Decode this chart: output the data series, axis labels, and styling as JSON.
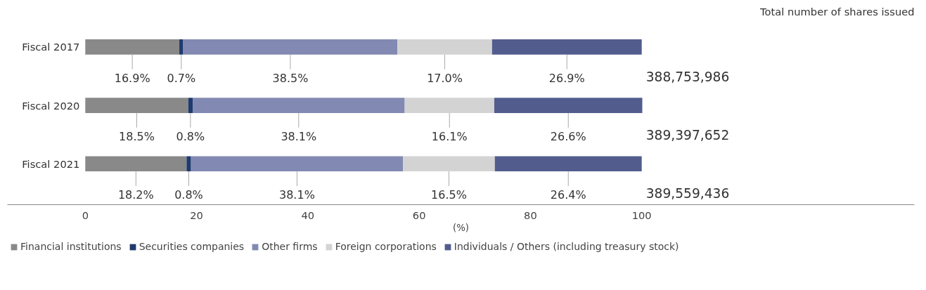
{
  "chart_data": {
    "type": "bar",
    "orientation": "horizontal",
    "stacked": true,
    "categories": [
      "Fiscal 2017",
      "Fiscal 2020",
      "Fiscal 2021"
    ],
    "xlabel": "(%)",
    "xlim": [
      -14,
      149
    ],
    "xticks": [
      0,
      20,
      40,
      60,
      80,
      100
    ],
    "grid": false,
    "legend": "bottom",
    "annotations": [
      "Total number of shares issued",
      "388,753,986",
      "389,397,652",
      "389,559,436"
    ],
    "series": [
      {
        "name": "Financial institutions",
        "color": "#898989",
        "values": [
          16.9,
          18.5,
          18.2
        ],
        "value_labels": [
          "16.9%",
          "18.5%",
          "18.2%"
        ]
      },
      {
        "name": "Securities companies",
        "color": "#1f3a6e",
        "values": [
          0.7,
          0.8,
          0.8
        ],
        "value_labels": [
          "0.7%",
          "0.8%",
          "0.8%"
        ]
      },
      {
        "name": "Other firms",
        "color": "#8289b2",
        "values": [
          38.5,
          38.1,
          38.1
        ],
        "value_labels": [
          "38.5%",
          "38.1%",
          "38.1%"
        ]
      },
      {
        "name": "Foreign corporations",
        "color": "#d3d3d3",
        "values": [
          17.0,
          16.1,
          16.5
        ],
        "value_labels": [
          "17.0%",
          "16.1%",
          "16.5%"
        ]
      },
      {
        "name": "Individuals / Others (including treasury stock)",
        "color": "#525d8e",
        "values": [
          26.9,
          26.6,
          26.4
        ],
        "value_labels": [
          "26.9%",
          "26.6%",
          "26.4%"
        ]
      }
    ]
  }
}
